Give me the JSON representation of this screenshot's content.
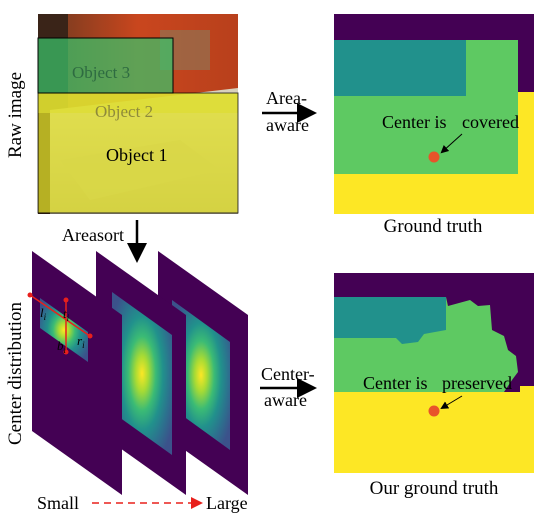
{
  "raw_image": {
    "label": "Raw image",
    "objects": [
      {
        "name": "Object 3",
        "color": "#39c46b"
      },
      {
        "name": "Object 2",
        "color": "#c8c84c"
      },
      {
        "name": "Object 1",
        "color": "#e6e628"
      }
    ]
  },
  "area_aware": {
    "line1": "Area-",
    "line2": "aware"
  },
  "center_aware": {
    "line1": "Center-",
    "line2": "aware"
  },
  "areasort": {
    "label": "Areasort"
  },
  "center_distribution": {
    "label": "Center distribution",
    "symbols": {
      "t": "t",
      "l": "l",
      "r": "r",
      "b": "b",
      "sub": "i"
    }
  },
  "scale": {
    "small": "Small",
    "large": "Large",
    "arrow_color": "#e8201c"
  },
  "ground_truth": {
    "annotation_prefix": "Center is",
    "annotation_word": "covered",
    "caption": "Ground truth"
  },
  "our_ground_truth": {
    "annotation_prefix": "Center is",
    "annotation_word": "preserved",
    "caption": "Our ground truth"
  },
  "colors": {
    "viridis_dark": "#440154",
    "teal": "#21918c",
    "green": "#5ec962",
    "yellow": "#fde725",
    "center_dot": "#e8542a"
  }
}
